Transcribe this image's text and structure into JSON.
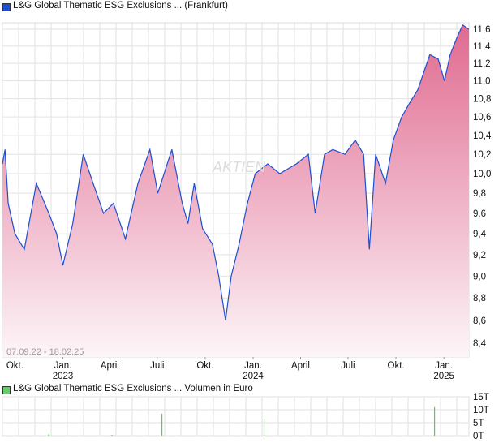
{
  "header": {
    "title": "L&G Global Thematic ESG Exclusions ... (Frankfurt)"
  },
  "volume_header": {
    "title": "L&G Global Thematic ESG Exclusions ... Volumen in Euro"
  },
  "range_label": "07.09.22 - 18.02.25",
  "watermark": "AKTIEN",
  "colors": {
    "line": "#1f4fd0",
    "fill_top": "#e06a90",
    "fill_bottom": "#fdf5f8",
    "volume": "#55cc55",
    "price_legend": "#1f4fd0",
    "volume_legend": "#66cc66"
  },
  "chart_data": [
    {
      "type": "area",
      "scale": "log",
      "ylim": [
        8.4,
        11.7
      ],
      "ytick_labels": [
        "11,6",
        "11,4",
        "11,2",
        "11,0",
        "10,8",
        "10,6",
        "10,4",
        "10,2",
        "10,0",
        "9,8",
        "9,6",
        "9,4",
        "9,2",
        "9,0",
        "8,8",
        "8,6",
        "8,4"
      ],
      "yticks": [
        11.6,
        11.4,
        11.2,
        11.0,
        10.8,
        10.6,
        10.4,
        10.2,
        10.0,
        9.8,
        9.6,
        9.4,
        9.2,
        9.0,
        8.8,
        8.6,
        8.4
      ],
      "xlim": [
        "2022-09-07",
        "2025-02-18"
      ],
      "xticks": [
        {
          "date": "2022-10-01",
          "label": "Okt.",
          "year": ""
        },
        {
          "date": "2023-01-01",
          "label": "Jan.",
          "year": "2023"
        },
        {
          "date": "2023-04-01",
          "label": "April",
          "year": ""
        },
        {
          "date": "2023-07-01",
          "label": "Juli",
          "year": ""
        },
        {
          "date": "2023-10-01",
          "label": "Okt.",
          "year": ""
        },
        {
          "date": "2024-01-01",
          "label": "Jan.",
          "year": "2024"
        },
        {
          "date": "2024-04-01",
          "label": "April",
          "year": ""
        },
        {
          "date": "2024-07-01",
          "label": "Juli",
          "year": ""
        },
        {
          "date": "2024-10-01",
          "label": "Okt.",
          "year": ""
        },
        {
          "date": "2025-01-01",
          "label": "Jan.",
          "year": "2025"
        }
      ],
      "grid": true,
      "x": [
        "2022-09-07",
        "2022-09-12",
        "2022-09-18",
        "2022-10-01",
        "2022-10-19",
        "2022-11-11",
        "2022-12-05",
        "2022-12-20",
        "2023-01-01",
        "2023-01-20",
        "2023-02-09",
        "2023-02-28",
        "2023-03-20",
        "2023-04-08",
        "2023-05-01",
        "2023-05-25",
        "2023-06-17",
        "2023-07-02",
        "2023-07-29",
        "2023-08-18",
        "2023-08-29",
        "2023-09-10",
        "2023-09-26",
        "2023-10-15",
        "2023-10-27",
        "2023-11-09",
        "2023-11-20",
        "2023-12-05",
        "2023-12-21",
        "2024-01-05",
        "2024-01-29",
        "2024-02-21",
        "2024-03-24",
        "2024-04-16",
        "2024-04-29",
        "2024-05-17",
        "2024-06-02",
        "2024-06-25",
        "2024-07-15",
        "2024-07-31",
        "2024-08-11",
        "2024-08-23",
        "2024-09-11",
        "2024-09-26",
        "2024-10-12",
        "2024-10-27",
        "2024-11-12",
        "2024-12-05",
        "2024-12-21",
        "2025-01-02",
        "2025-01-13",
        "2025-01-26",
        "2025-02-06",
        "2025-02-18"
      ],
      "y": [
        10.1,
        10.25,
        9.7,
        9.4,
        9.25,
        9.9,
        9.6,
        9.4,
        9.1,
        9.5,
        10.2,
        9.9,
        9.6,
        9.7,
        9.35,
        9.9,
        10.25,
        9.8,
        10.25,
        9.7,
        9.5,
        9.9,
        9.45,
        9.3,
        9.0,
        8.6,
        9.0,
        9.3,
        9.7,
        10.0,
        10.1,
        10.0,
        10.1,
        10.2,
        9.6,
        10.2,
        10.25,
        10.2,
        10.35,
        10.2,
        9.25,
        10.2,
        9.9,
        10.35,
        10.6,
        10.75,
        10.9,
        11.3,
        11.25,
        11.0,
        11.3,
        11.5,
        11.65,
        11.6
      ]
    },
    {
      "type": "bar",
      "ylim": [
        0,
        15
      ],
      "ytick_labels": [
        "15T",
        "10T",
        "5T",
        "0T"
      ],
      "yticks": [
        15,
        10,
        5,
        0
      ],
      "unit": "T",
      "x": [
        "2022-12-05",
        "2023-04-05",
        "2023-07-10",
        "2024-01-22",
        "2024-12-14"
      ],
      "values": [
        0.5,
        0.3,
        8.5,
        6.5,
        11
      ]
    }
  ]
}
